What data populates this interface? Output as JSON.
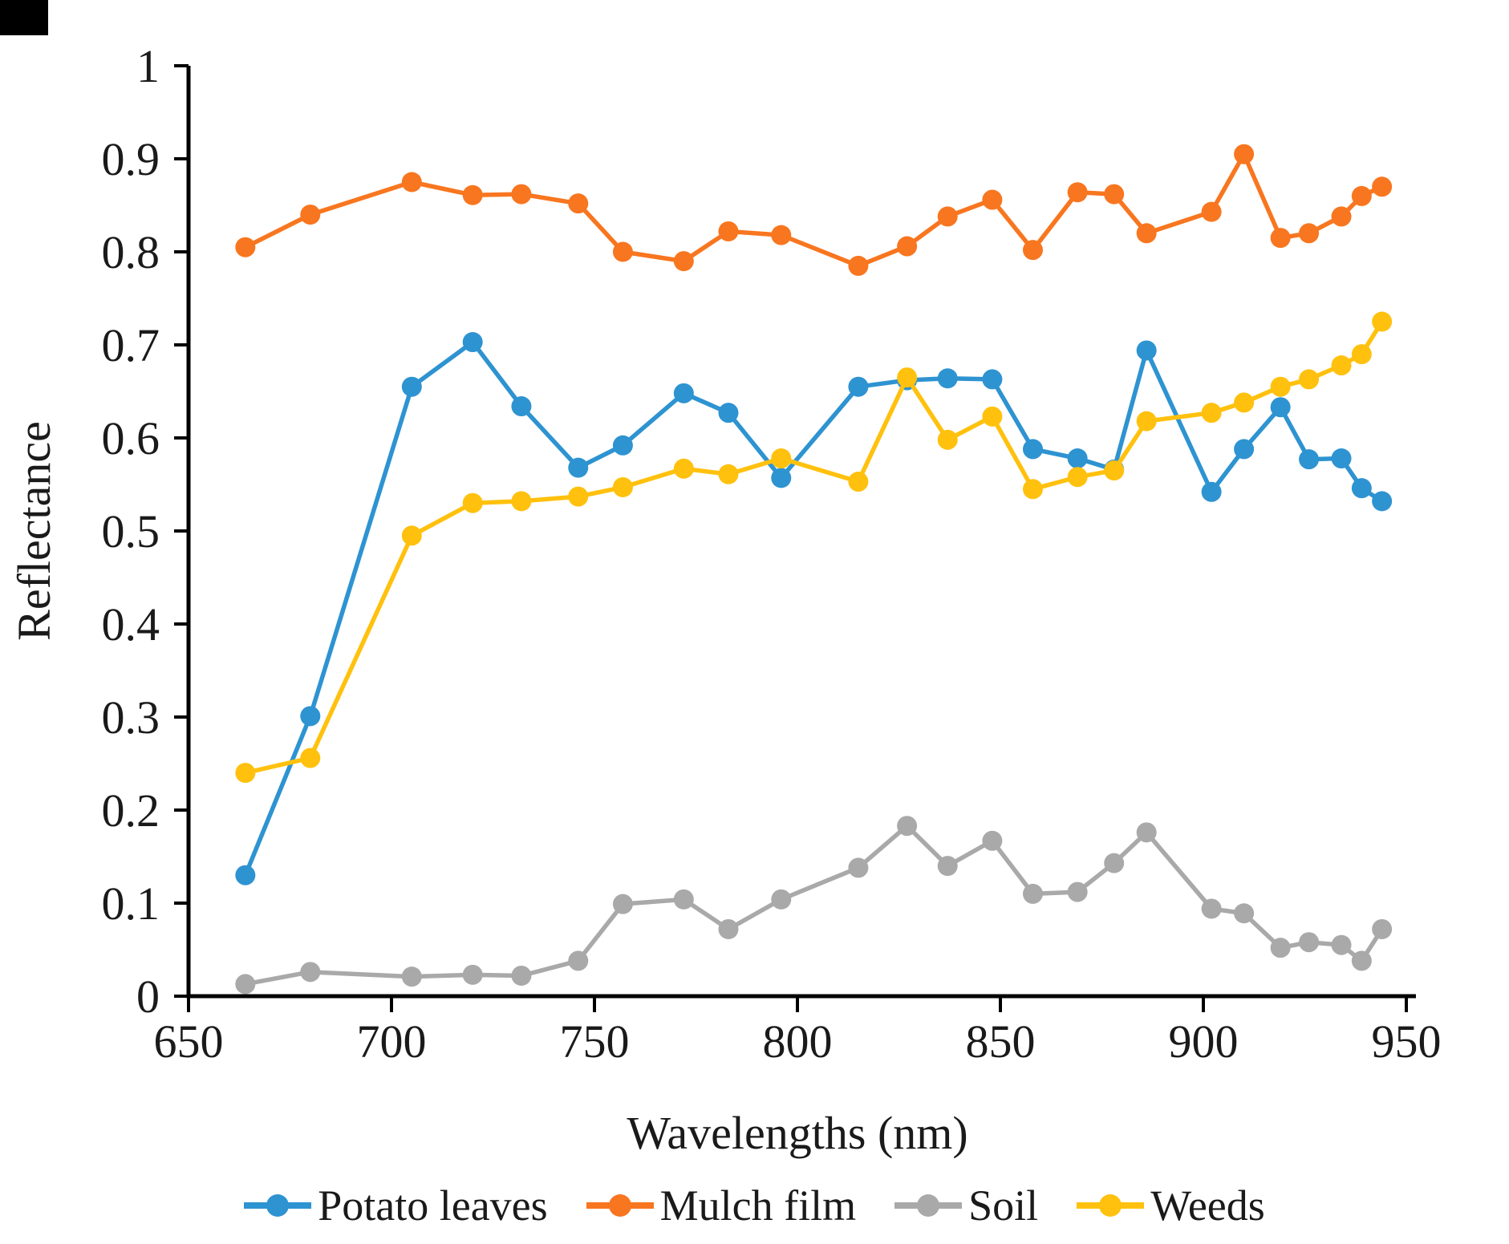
{
  "chart_data": {
    "type": "line",
    "title": "",
    "xlabel": "Wavelengths (nm)",
    "ylabel": "Reflectance",
    "xlim": [
      650,
      950
    ],
    "ylim": [
      0,
      1
    ],
    "grid": false,
    "legend_position": "bottom",
    "x_ticks": [
      "650",
      "700",
      "750",
      "800",
      "850",
      "900",
      "950"
    ],
    "y_ticks": [
      "0",
      "0.1",
      "0.2",
      "0.3",
      "0.4",
      "0.5",
      "0.6",
      "0.7",
      "0.8",
      "0.9",
      "1"
    ],
    "x": [
      664,
      680,
      705,
      720,
      732,
      746,
      757,
      772,
      783,
      796,
      815,
      827,
      837,
      848,
      858,
      869,
      878,
      886,
      902,
      910,
      919,
      926,
      934,
      939,
      944
    ],
    "series": [
      {
        "name": "Potato leaves",
        "color": "#2E93D1",
        "values": [
          0.13,
          0.301,
          0.655,
          0.703,
          0.634,
          0.568,
          0.592,
          0.648,
          0.627,
          0.557,
          0.655,
          0.662,
          0.664,
          0.663,
          0.588,
          0.578,
          0.566,
          0.694,
          0.542,
          0.588,
          0.633,
          0.577,
          0.578,
          0.546,
          0.532
        ]
      },
      {
        "name": "Mulch film",
        "color": "#F8761F",
        "values": [
          0.805,
          0.84,
          0.875,
          0.861,
          0.862,
          0.852,
          0.8,
          0.79,
          0.822,
          0.818,
          0.785,
          0.806,
          0.838,
          0.856,
          0.802,
          0.864,
          0.862,
          0.82,
          0.843,
          0.905,
          0.815,
          0.82,
          0.838,
          0.86,
          0.87
        ]
      },
      {
        "name": "Soil",
        "color": "#A9A9A9",
        "values": [
          0.013,
          0.026,
          0.021,
          0.023,
          0.022,
          0.038,
          0.099,
          0.104,
          0.072,
          0.104,
          0.138,
          0.183,
          0.14,
          0.167,
          0.11,
          0.112,
          0.143,
          0.176,
          0.094,
          0.089,
          0.052,
          0.058,
          0.055,
          0.038,
          0.072
        ]
      },
      {
        "name": "Weeds",
        "color": "#FFC10E",
        "values": [
          0.24,
          0.256,
          0.495,
          0.53,
          0.532,
          0.537,
          0.547,
          0.567,
          0.561,
          0.578,
          0.553,
          0.665,
          0.598,
          0.623,
          0.545,
          0.558,
          0.565,
          0.618,
          0.627,
          0.638,
          0.655,
          0.663,
          0.678,
          0.69,
          0.725
        ]
      }
    ]
  },
  "legend": {
    "items": [
      {
        "label": "Potato leaves",
        "color": "#2E93D1"
      },
      {
        "label": "Mulch film",
        "color": "#F8761F"
      },
      {
        "label": "Soil",
        "color": "#A9A9A9"
      },
      {
        "label": "Weeds",
        "color": "#FFC10E"
      }
    ]
  }
}
